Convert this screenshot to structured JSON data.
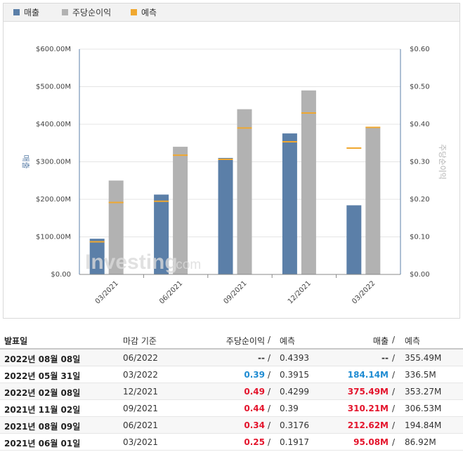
{
  "legend": [
    {
      "label": "매출",
      "color": "#5b7fa8"
    },
    {
      "label": "주당순이익",
      "color": "#b2b2b2"
    },
    {
      "label": "예측",
      "color": "#f0a830"
    }
  ],
  "chart_data": {
    "type": "bar",
    "categories": [
      "03/2021",
      "06/2021",
      "09/2021",
      "12/2021",
      "03/2022"
    ],
    "series": [
      {
        "name": "매출",
        "axis": "left",
        "color": "#5b7fa8",
        "values": [
          95.08,
          212.62,
          310.21,
          375.49,
          184.14
        ]
      },
      {
        "name": "주당순이익",
        "axis": "right",
        "color": "#b2b2b2",
        "values": [
          0.25,
          0.34,
          0.44,
          0.49,
          0.39
        ]
      }
    ],
    "forecast": {
      "name": "예측",
      "color": "#f0a830",
      "revenue": [
        86.92,
        194.84,
        306.53,
        353.27,
        336.5
      ],
      "eps": [
        0.1917,
        0.3176,
        0.39,
        0.4299,
        0.3915
      ]
    },
    "y_left": {
      "label": "매출",
      "range": [
        0,
        600
      ],
      "ticks": [
        "$0.00",
        "$100.00M",
        "$200.00M",
        "$300.00M",
        "$400.00M",
        "$500.00M",
        "$600.00M"
      ]
    },
    "y_right": {
      "label": "주당순이익",
      "range": [
        0,
        0.6
      ],
      "ticks": [
        "$0.00",
        "$0.10",
        "$0.20",
        "$0.30",
        "$0.40",
        "$0.50",
        "$0.60"
      ]
    },
    "grid": true,
    "watermark": "Investing.com"
  },
  "table": {
    "headers": {
      "date": "발표일",
      "period": "마감 기준",
      "eps": "주당순이익",
      "slash": "/",
      "eps_forecast": "예측",
      "revenue": "매출",
      "revenue_forecast": "예측"
    },
    "rows": [
      {
        "date": "2022년 08월 08일",
        "period": "06/2022",
        "eps": "--",
        "eps_forecast": "0.4393",
        "revenue": "--",
        "revenue_forecast": "355.49M",
        "eps_color": "neutral",
        "rev_color": "neutral"
      },
      {
        "date": "2022년 05월 31일",
        "period": "03/2022",
        "eps": "0.39",
        "eps_forecast": "0.3915",
        "revenue": "184.14M",
        "revenue_forecast": "336.5M",
        "eps_color": "blue",
        "rev_color": "blue"
      },
      {
        "date": "2022년 02월 08일",
        "period": "12/2021",
        "eps": "0.49",
        "eps_forecast": "0.4299",
        "revenue": "375.49M",
        "revenue_forecast": "353.27M",
        "eps_color": "pos",
        "rev_color": "pos"
      },
      {
        "date": "2021년 11월 02일",
        "period": "09/2021",
        "eps": "0.44",
        "eps_forecast": "0.39",
        "revenue": "310.21M",
        "revenue_forecast": "306.53M",
        "eps_color": "pos",
        "rev_color": "pos"
      },
      {
        "date": "2021년 08월 09일",
        "period": "06/2021",
        "eps": "0.34",
        "eps_forecast": "0.3176",
        "revenue": "212.62M",
        "revenue_forecast": "194.84M",
        "eps_color": "pos",
        "rev_color": "pos"
      },
      {
        "date": "2021년 06월 01일",
        "period": "03/2021",
        "eps": "0.25",
        "eps_forecast": "0.1917",
        "revenue": "95.08M",
        "revenue_forecast": "86.92M",
        "eps_color": "pos",
        "rev_color": "pos"
      }
    ]
  }
}
